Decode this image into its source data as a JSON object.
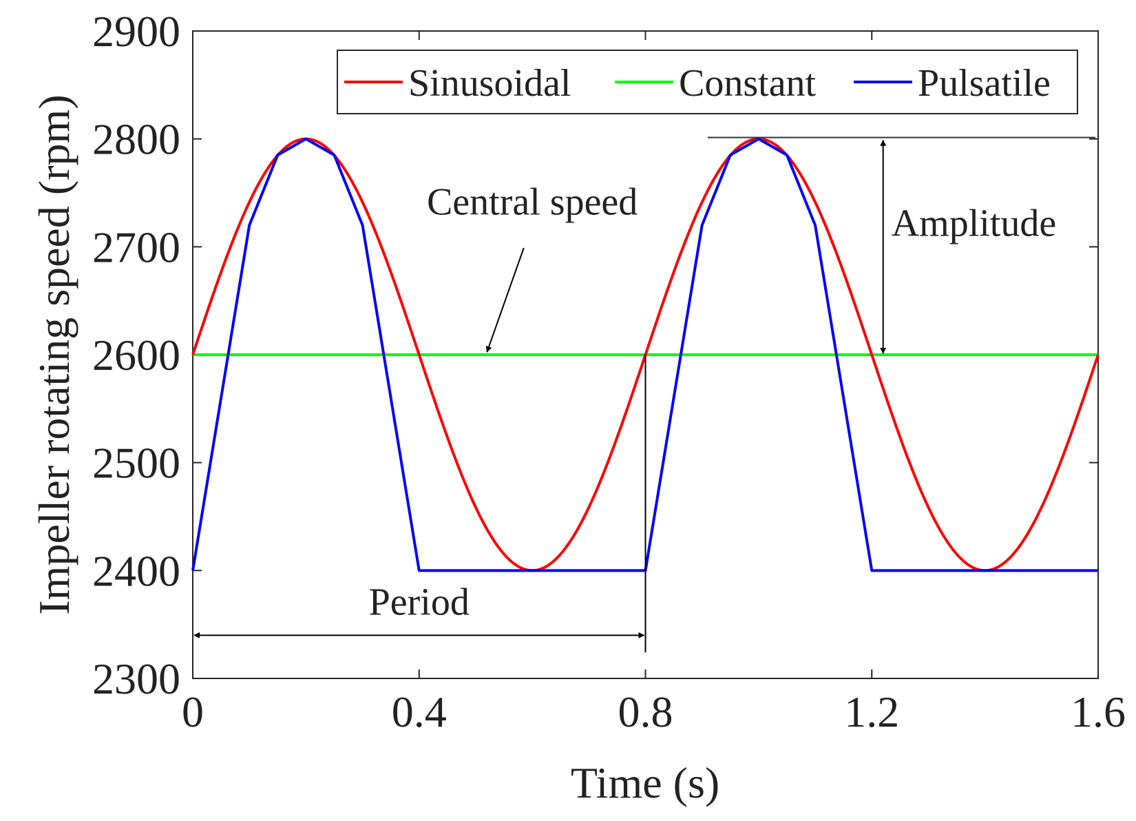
{
  "chart_data": {
    "type": "line",
    "title": "",
    "xlabel": "Time (s)",
    "ylabel": "Impeller rotating speed (rpm)",
    "xlim": [
      0,
      1.6
    ],
    "ylim": [
      2300,
      2900
    ],
    "xticks": [
      0,
      0.4,
      0.8,
      1.2,
      1.6
    ],
    "xtick_labels": [
      "0",
      "0.4",
      "0.8",
      "1.2",
      "1.6"
    ],
    "yticks": [
      2300,
      2400,
      2500,
      2600,
      2700,
      2800,
      2900
    ],
    "ytick_labels": [
      "2300",
      "2400",
      "2500",
      "2600",
      "2700",
      "2800",
      "2900"
    ],
    "grid": false,
    "legend_position": "top",
    "series": [
      {
        "name": "Sinusoidal",
        "color": "#ff0000",
        "kind": "sine",
        "center": 2600,
        "amplitude": 200,
        "period": 0.8
      },
      {
        "name": "Constant",
        "color": "#00ff00",
        "kind": "constant",
        "value": 2600
      },
      {
        "name": "Pulsatile",
        "color": "#0000ff",
        "kind": "piecewise",
        "points": [
          [
            0,
            2400
          ],
          [
            0.1,
            2720
          ],
          [
            0.15,
            2785
          ],
          [
            0.2,
            2800
          ],
          [
            0.25,
            2785
          ],
          [
            0.3,
            2720
          ],
          [
            0.4,
            2400
          ],
          [
            0.8,
            2400
          ],
          [
            0.9,
            2720
          ],
          [
            0.95,
            2785
          ],
          [
            1.0,
            2800
          ],
          [
            1.05,
            2785
          ],
          [
            1.1,
            2720
          ],
          [
            1.2,
            2400
          ],
          [
            1.6,
            2400
          ]
        ]
      }
    ],
    "annotations": {
      "central_speed": {
        "text": "Central speed",
        "arrow_to": [
          0.52,
          2600
        ]
      },
      "amplitude": {
        "text": "Amplitude",
        "x": 1.22,
        "y_from": 2600,
        "y_to": 2800
      },
      "period": {
        "text": "Period",
        "x_from": 0,
        "x_to": 0.8,
        "y": 2340
      }
    }
  }
}
